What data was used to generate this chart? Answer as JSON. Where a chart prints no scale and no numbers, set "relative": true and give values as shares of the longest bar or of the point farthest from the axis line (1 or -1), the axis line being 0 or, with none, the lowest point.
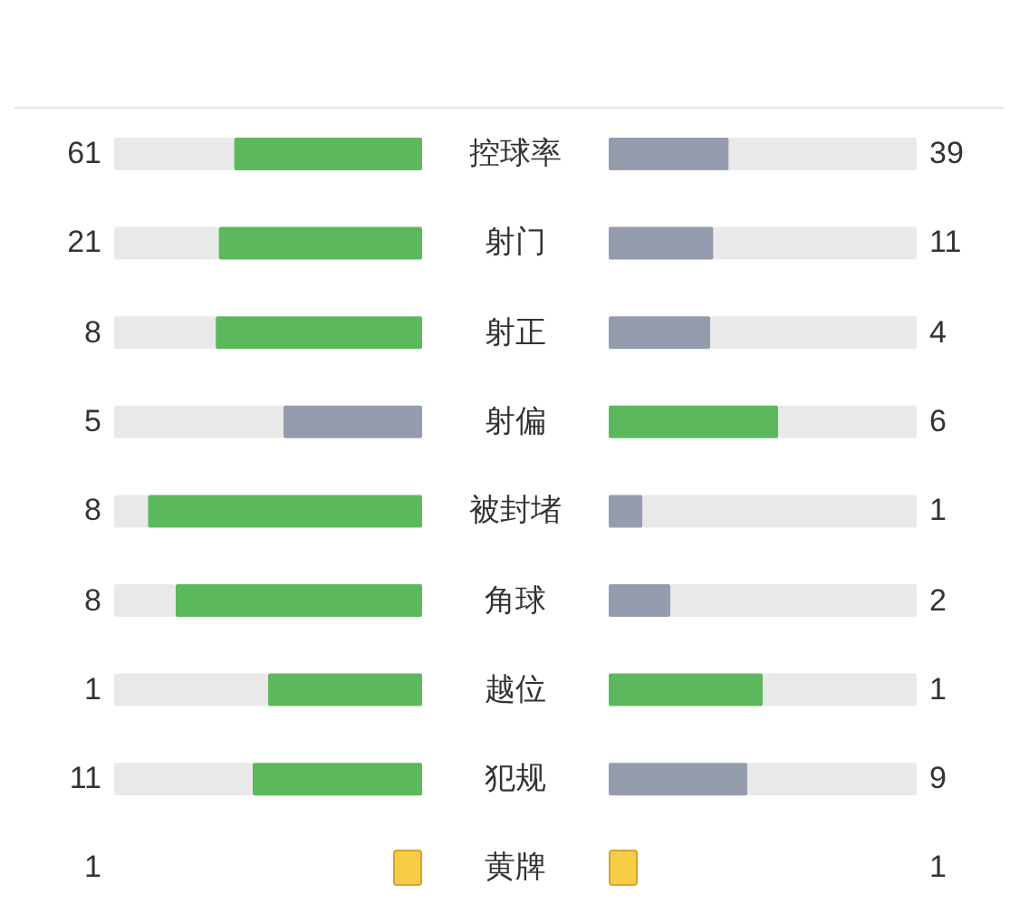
{
  "chart_data": [
    {
      "type": "bar",
      "orientation": "horizontal",
      "stacked": true,
      "relative": true,
      "categories": [
        null,
        null,
        null,
        null,
        null,
        null,
        null,
        null
      ],
      "series": [
        {
          "values": [
            0.39,
            0.34,
            0.33,
            0.55,
            0.11,
            0.2,
            0.5,
            0.45
          ],
          "color": "#e9e9e9"
        },
        {
          "values": [
            0.61,
            0.66,
            0.67,
            0.45,
            0.89,
            0.8,
            0.5,
            0.55
          ],
          "colors": [
            "#5cb85c",
            "#5cb85c",
            "#5cb85c",
            "#959cad",
            "#5cb85c",
            "#5cb85c",
            "#5cb85c",
            "#5cb85c"
          ]
        }
      ]
    },
    {
      "type": "bar",
      "orientation": "horizontal",
      "stacked": true,
      "relative": true,
      "categories": [
        null,
        null,
        null,
        null,
        null,
        null,
        null,
        null
      ],
      "series": [
        {
          "values": [
            0.39,
            0.34,
            0.33,
            0.55,
            0.11,
            0.2,
            0.5,
            0.45
          ],
          "colors": [
            "#959cad",
            "#959cad",
            "#959cad",
            "#5cb85c",
            "#959cad",
            "#959cad",
            "#5cb85c",
            "#959cad"
          ]
        },
        {
          "values": [
            0.61,
            0.66,
            0.67,
            0.45,
            0.89,
            0.8,
            0.5,
            0.55
          ],
          "color": "#e9e9e9"
        }
      ]
    },
    {
      "type": "other",
      "categories": [
        "控球率",
        "射门",
        "射正",
        "射偏",
        "被封堵",
        "角球",
        "越位",
        "犯规",
        "黄牌"
      ],
      "series": [
        {
          "values": [
            61,
            21,
            8,
            5,
            8,
            8,
            1,
            11,
            1
          ],
          "colors": [
            null,
            null,
            null,
            null,
            null,
            null,
            null,
            null,
            "#f8cd46"
          ]
        },
        {
          "values": [
            39,
            11,
            4,
            6,
            1,
            2,
            1,
            9,
            1
          ],
          "colors": [
            null,
            null,
            null,
            null,
            null,
            null,
            null,
            null,
            "#f8cd46"
          ]
        }
      ],
      "data_labels": true
    }
  ]
}
